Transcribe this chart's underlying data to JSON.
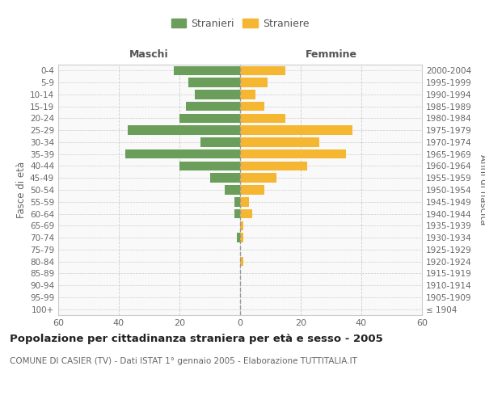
{
  "age_groups": [
    "100+",
    "95-99",
    "90-94",
    "85-89",
    "80-84",
    "75-79",
    "70-74",
    "65-69",
    "60-64",
    "55-59",
    "50-54",
    "45-49",
    "40-44",
    "35-39",
    "30-34",
    "25-29",
    "20-24",
    "15-19",
    "10-14",
    "5-9",
    "0-4"
  ],
  "birth_years": [
    "≤ 1904",
    "1905-1909",
    "1910-1914",
    "1915-1919",
    "1920-1924",
    "1925-1929",
    "1930-1934",
    "1935-1939",
    "1940-1944",
    "1945-1949",
    "1950-1954",
    "1955-1959",
    "1960-1964",
    "1965-1969",
    "1970-1974",
    "1975-1979",
    "1980-1984",
    "1985-1989",
    "1990-1994",
    "1995-1999",
    "2000-2004"
  ],
  "maschi": [
    0,
    0,
    0,
    0,
    0,
    0,
    1,
    0,
    2,
    2,
    5,
    10,
    20,
    38,
    13,
    37,
    20,
    18,
    15,
    17,
    22
  ],
  "femmine": [
    0,
    0,
    0,
    0,
    1,
    0,
    1,
    1,
    4,
    3,
    8,
    12,
    22,
    35,
    26,
    37,
    15,
    8,
    5,
    9,
    15
  ],
  "maschi_color": "#6a9e5a",
  "femmine_color": "#f5b731",
  "legend_maschi": "Stranieri",
  "legend_femmine": "Straniere",
  "title_maschi": "Maschi",
  "title_femmine": "Femmine",
  "ylabel_left": "Fasce di età",
  "ylabel_right": "Anni di nascita",
  "xlim": 60,
  "main_title": "Popolazione per cittadinanza straniera per età e sesso - 2005",
  "subtitle": "COMUNE DI CASIER (TV) - Dati ISTAT 1° gennaio 2005 - Elaborazione TUTTITALIA.IT",
  "bg_color": "#f9f9f9",
  "grid_color": "#cccccc",
  "border_color": "#cccccc"
}
